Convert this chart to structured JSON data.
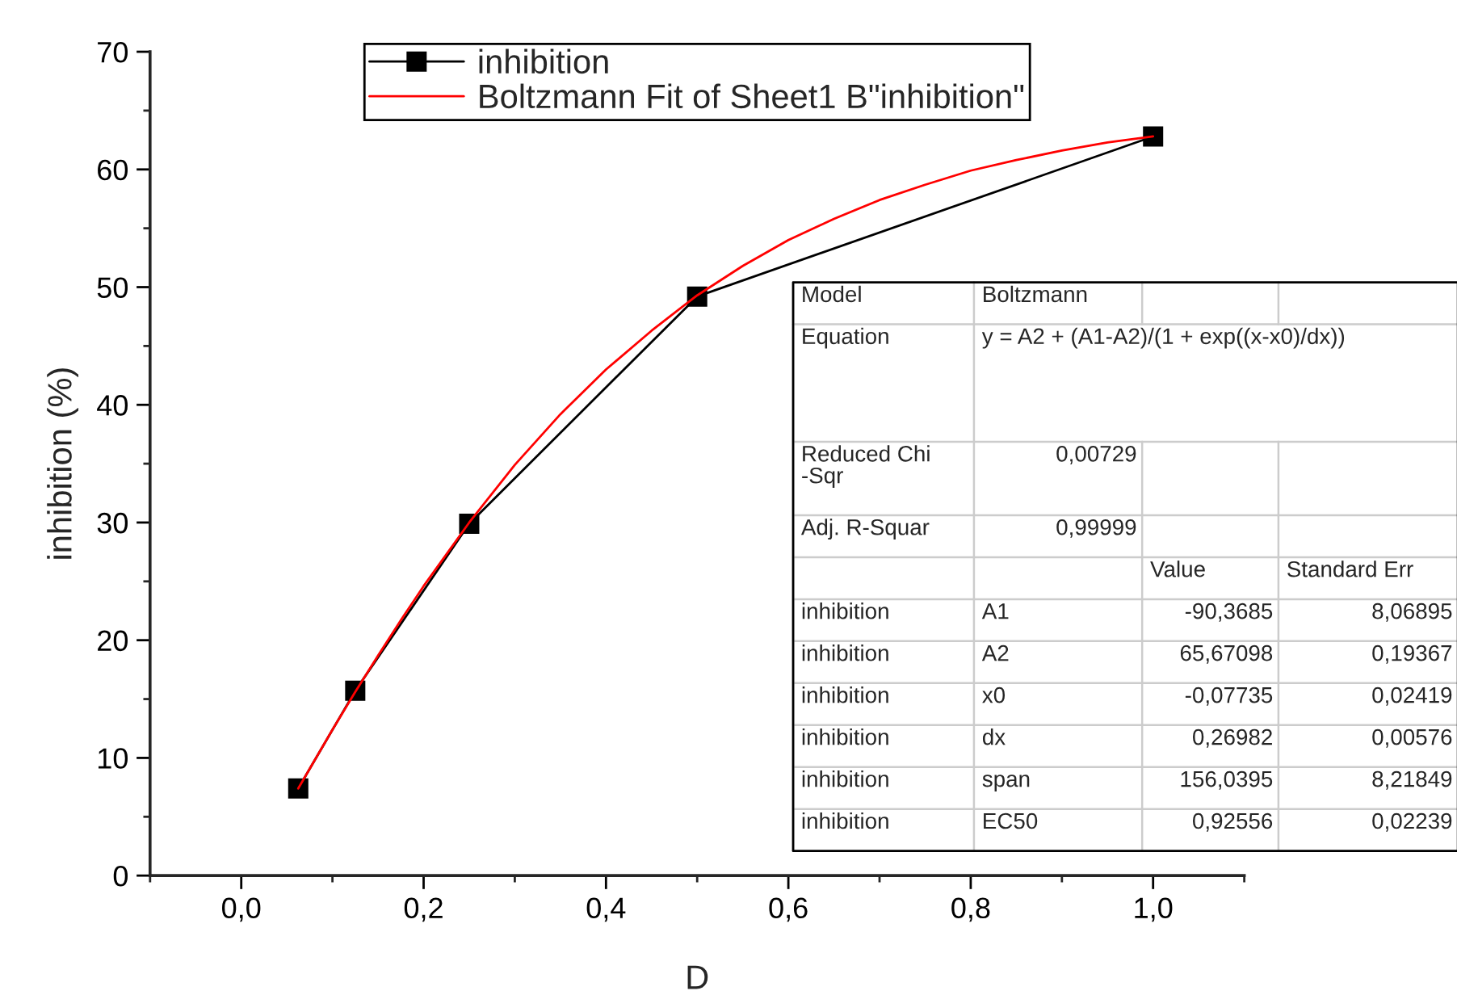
{
  "chart_data": [
    {
      "type": "line",
      "xlabel": "D",
      "ylabel": "inhibition (%)",
      "series": [
        {
          "name": "inhibition",
          "type": "line",
          "color": "#000000",
          "marker": "square",
          "x": [
            0.0625,
            0.125,
            0.25,
            0.5,
            1.0
          ],
          "values": [
            7.4,
            15.7,
            29.9,
            49.2,
            62.8
          ]
        },
        {
          "name": "Boltzmann Fit of Sheet1 B\"inhibition\"",
          "type": "line",
          "color": "#ff0000",
          "marker": "none",
          "x": [
            0.0625,
            0.1,
            0.125,
            0.15,
            0.175,
            0.2,
            0.225,
            0.25,
            0.3,
            0.35,
            0.4,
            0.45,
            0.5,
            0.55,
            0.6,
            0.65,
            0.7,
            0.75,
            0.8,
            0.85,
            0.9,
            0.95,
            1.0
          ],
          "values": [
            7.4,
            12.4,
            15.6,
            18.7,
            21.7,
            24.6,
            27.3,
            30.0,
            34.9,
            39.2,
            43.0,
            46.3,
            49.3,
            51.8,
            54.0,
            55.8,
            57.4,
            58.7,
            59.9,
            60.8,
            61.6,
            62.3,
            62.8
          ]
        }
      ],
      "xlim": [
        -0.1,
        1.1
      ],
      "ylim": [
        0,
        70
      ],
      "xticks": [
        {
          "value": -0.1,
          "label": null
        },
        {
          "value": 0.0,
          "label": "0,0"
        },
        {
          "value": 0.1,
          "label": null
        },
        {
          "value": 0.2,
          "label": "0,2"
        },
        {
          "value": 0.3,
          "label": null
        },
        {
          "value": 0.4,
          "label": "0,4"
        },
        {
          "value": 0.5,
          "label": null
        },
        {
          "value": 0.6,
          "label": "0,6"
        },
        {
          "value": 0.7,
          "label": null
        },
        {
          "value": 0.8,
          "label": "0,8"
        },
        {
          "value": 0.9,
          "label": null
        },
        {
          "value": 1.0,
          "label": "1,0"
        },
        {
          "value": 1.1,
          "label": null
        }
      ],
      "yticks": [
        0,
        {
          "value": 5,
          "label": null
        },
        10,
        {
          "value": 15,
          "label": null
        },
        20,
        {
          "value": 25,
          "label": null
        },
        30,
        {
          "value": 35,
          "label": null
        },
        40,
        {
          "value": 45,
          "label": null
        },
        50,
        {
          "value": 55,
          "label": null
        },
        60,
        {
          "value": 65,
          "label": null
        },
        70
      ],
      "grid": false,
      "legend": "top"
    },
    {
      "type": "other",
      "cell_labels": [
        [
          "Model",
          "Boltzmann",
          null,
          null
        ],
        [
          "Equation",
          "y = A2 + (A1-A2)/(1 + exp((x-x0)/dx))",
          null,
          null
        ],
        [
          "Reduced Chi\n-Sqr",
          "0,00729",
          null,
          null
        ],
        [
          "Adj. R-Squar",
          "0,99999",
          null,
          null
        ],
        [
          null,
          null,
          "Value",
          "Standard Err"
        ],
        [
          "inhibition",
          "A1",
          "-90,3685",
          "8,06895"
        ],
        [
          "inhibition",
          "A2",
          "65,67098",
          "0,19367"
        ],
        [
          "inhibition",
          "x0",
          "-0,07735",
          "0,02419"
        ],
        [
          "inhibition",
          "dx",
          "0,26982",
          "0,00576"
        ],
        [
          "inhibition",
          "span",
          "156,0395",
          "8,21849"
        ],
        [
          "inhibition",
          "EC50",
          "0,92556",
          "0,02239"
        ]
      ]
    }
  ]
}
